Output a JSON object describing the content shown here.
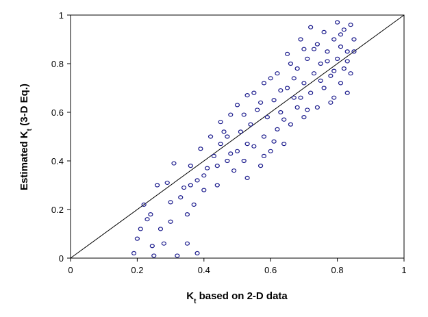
{
  "chart_data": {
    "type": "scatter",
    "x_label": [
      "K",
      "t",
      " based on 2-D data"
    ],
    "y_label": [
      "Estimated K",
      "t",
      " (3-D Eq.)"
    ],
    "xlim": [
      0,
      1
    ],
    "ylim": [
      0,
      1
    ],
    "xticks": [
      0,
      0.2,
      0.4,
      0.6,
      0.8,
      1
    ],
    "yticks": [
      0,
      0.2,
      0.4,
      0.6,
      0.8,
      1
    ],
    "identity_line": true,
    "color": "#1a1a8c",
    "x": [
      0.19,
      0.2,
      0.21,
      0.22,
      0.23,
      0.24,
      0.245,
      0.25,
      0.26,
      0.27,
      0.28,
      0.29,
      0.3,
      0.3,
      0.31,
      0.32,
      0.33,
      0.34,
      0.35,
      0.35,
      0.36,
      0.37,
      0.38,
      0.38,
      0.39,
      0.4,
      0.41,
      0.42,
      0.43,
      0.44,
      0.45,
      0.46,
      0.47,
      0.48,
      0.49,
      0.5,
      0.5,
      0.51,
      0.52,
      0.53,
      0.53,
      0.54,
      0.55,
      0.56,
      0.57,
      0.58,
      0.58,
      0.59,
      0.6,
      0.61,
      0.62,
      0.62,
      0.63,
      0.64,
      0.65,
      0.65,
      0.66,
      0.67,
      0.68,
      0.68,
      0.69,
      0.7,
      0.7,
      0.71,
      0.72,
      0.72,
      0.73,
      0.74,
      0.74,
      0.75,
      0.76,
      0.76,
      0.77,
      0.78,
      0.78,
      0.79,
      0.8,
      0.8,
      0.81,
      0.81,
      0.82,
      0.82,
      0.83,
      0.83,
      0.84,
      0.84,
      0.85,
      0.85,
      0.79,
      0.66,
      0.6,
      0.55,
      0.45,
      0.4,
      0.36,
      0.47,
      0.52,
      0.57,
      0.63,
      0.67,
      0.71,
      0.73,
      0.75,
      0.77,
      0.79,
      0.81,
      0.83,
      0.53,
      0.48,
      0.44,
      0.58,
      0.61,
      0.64,
      0.69,
      0.7
    ],
    "y": [
      0.02,
      0.08,
      0.12,
      0.22,
      0.16,
      0.18,
      0.05,
      0.01,
      0.3,
      0.12,
      0.06,
      0.31,
      0.23,
      0.15,
      0.39,
      0.01,
      0.25,
      0.29,
      0.18,
      0.06,
      0.38,
      0.22,
      0.32,
      0.02,
      0.45,
      0.28,
      0.37,
      0.5,
      0.42,
      0.3,
      0.47,
      0.52,
      0.4,
      0.59,
      0.36,
      0.44,
      0.63,
      0.52,
      0.4,
      0.67,
      0.33,
      0.55,
      0.46,
      0.61,
      0.38,
      0.5,
      0.72,
      0.58,
      0.44,
      0.65,
      0.53,
      0.76,
      0.6,
      0.47,
      0.7,
      0.84,
      0.55,
      0.66,
      0.78,
      0.62,
      0.9,
      0.72,
      0.58,
      0.82,
      0.68,
      0.95,
      0.76,
      0.62,
      0.88,
      0.8,
      0.7,
      0.93,
      0.85,
      0.75,
      0.64,
      0.9,
      0.82,
      0.97,
      0.72,
      0.87,
      0.78,
      0.94,
      0.68,
      0.85,
      0.96,
      0.76,
      0.9,
      0.85,
      0.66,
      0.8,
      0.74,
      0.68,
      0.56,
      0.34,
      0.3,
      0.5,
      0.59,
      0.64,
      0.69,
      0.74,
      0.61,
      0.86,
      0.73,
      0.81,
      0.77,
      0.92,
      0.81,
      0.47,
      0.43,
      0.38,
      0.42,
      0.48,
      0.57,
      0.66,
      0.86
    ]
  }
}
